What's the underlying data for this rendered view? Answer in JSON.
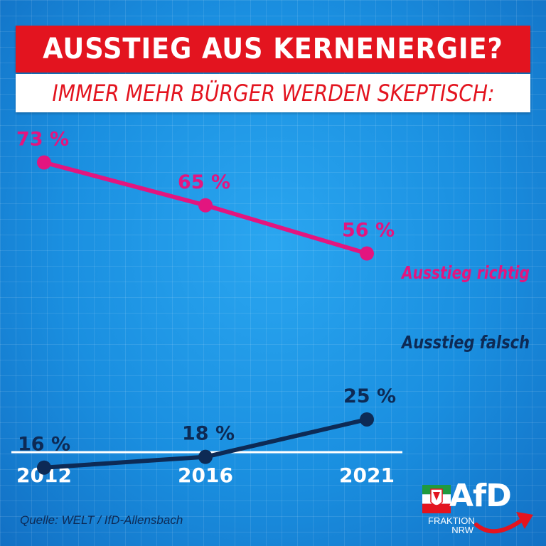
{
  "header": {
    "title": "AUSSTIEG AUS KERNENERGIE?",
    "subtitle": "IMMER MEHR BÜRGER WERDEN SKEPTISCH:"
  },
  "colors": {
    "pink": "#e3157f",
    "navy": "#0d2a55",
    "red": "#e3141f",
    "white": "#ffffff"
  },
  "chart_data": {
    "type": "line",
    "categories": [
      "2012",
      "2016",
      "2021"
    ],
    "series": [
      {
        "name": "Ausstieg richtig",
        "values": [
          73,
          65,
          56
        ],
        "labels": [
          "73 %",
          "65 %",
          "56 %"
        ],
        "color": "#e3157f"
      },
      {
        "name": "Ausstieg falsch",
        "values": [
          16,
          18,
          25
        ],
        "labels": [
          "16 %",
          "18 %",
          "25 %"
        ],
        "color": "#0d2a55"
      }
    ],
    "title": "",
    "xlabel": "",
    "ylabel": "",
    "grid": false
  },
  "footer": {
    "source": "Quelle: WELT / IfD-Allensbach"
  },
  "logo": {
    "name": "AfD",
    "line1": "FRAKTION",
    "line2": "NRW"
  }
}
